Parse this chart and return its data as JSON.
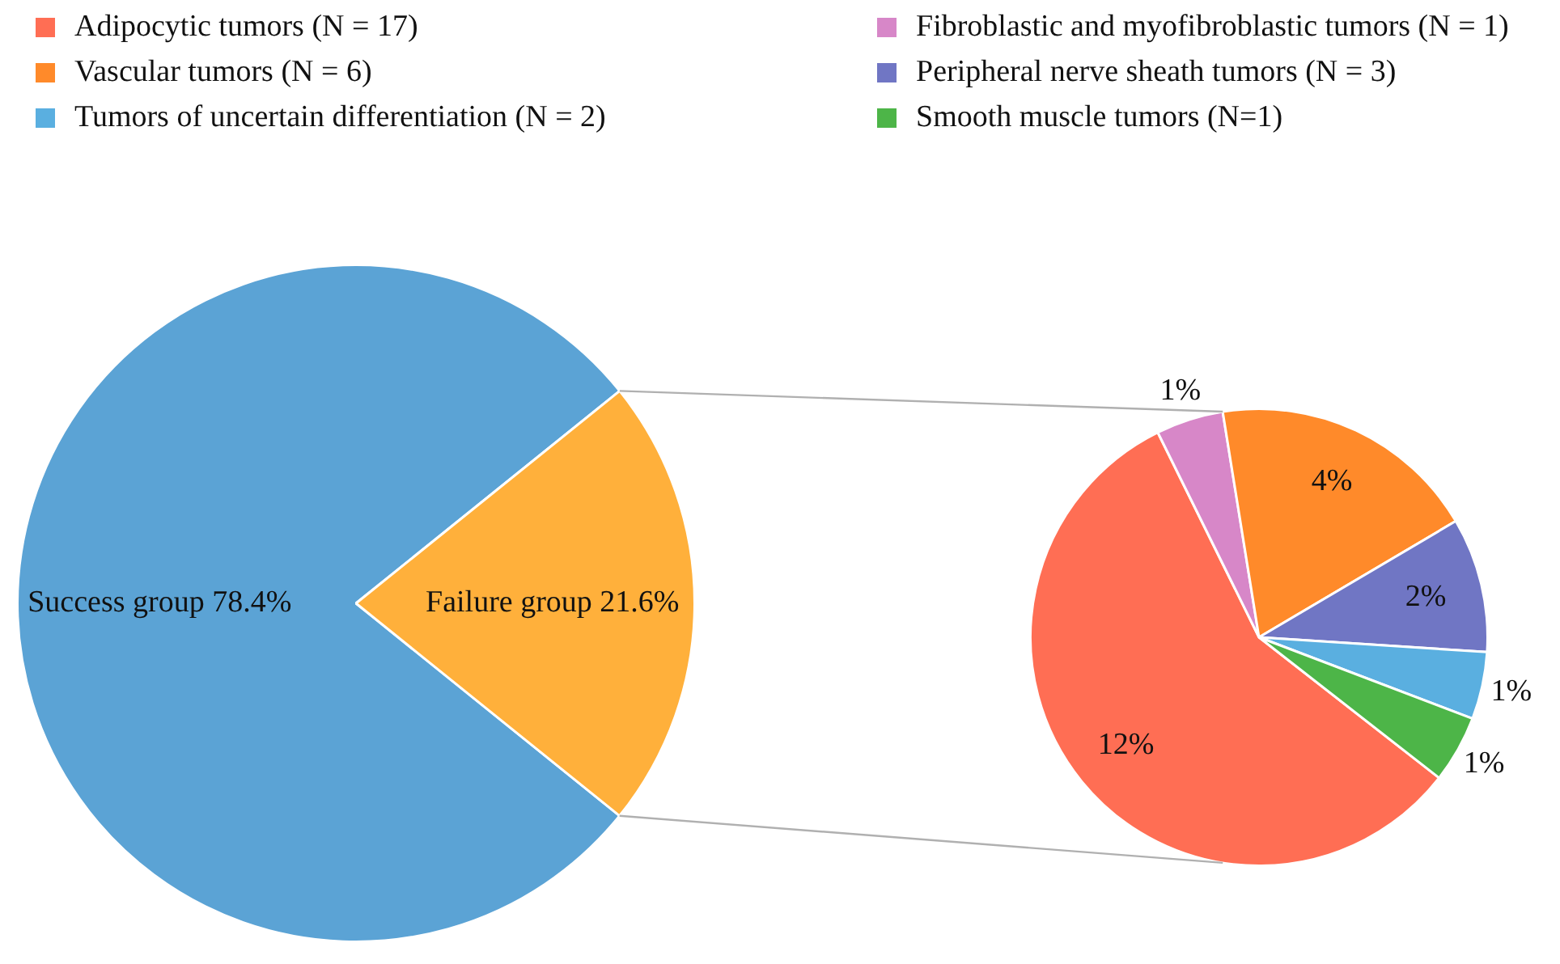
{
  "chart_data": [
    {
      "type": "pie",
      "categories": [
        "Success group",
        "Failure group"
      ],
      "values": [
        78.4,
        21.6
      ],
      "colors": [
        "#5ba3d5",
        "#ffb03b"
      ],
      "value_labels": [
        "78.4%",
        "21.6%"
      ],
      "legend": false
    },
    {
      "type": "pie",
      "categories": [
        "Adipocytic tumors (N = 17)",
        "Fibroblastic and myofibroblastic tumors (N = 1)",
        "Vascular tumors (N = 6)",
        "Peripheral nerve sheath tumors (N = 3)",
        "Tumors of uncertain differentiation (N = 2)",
        "Smooth muscle tumors (N=1)"
      ],
      "values": [
        12,
        1,
        4,
        2,
        1,
        1
      ],
      "colors": [
        "#ff6e54",
        "#d787c8",
        "#ff8a2a",
        "#7076c4",
        "#5aafe0",
        "#4db548"
      ],
      "value_labels": [
        "12%",
        "1%",
        "4%",
        "2%",
        "1%",
        "1%"
      ],
      "legend": "top"
    }
  ]
}
